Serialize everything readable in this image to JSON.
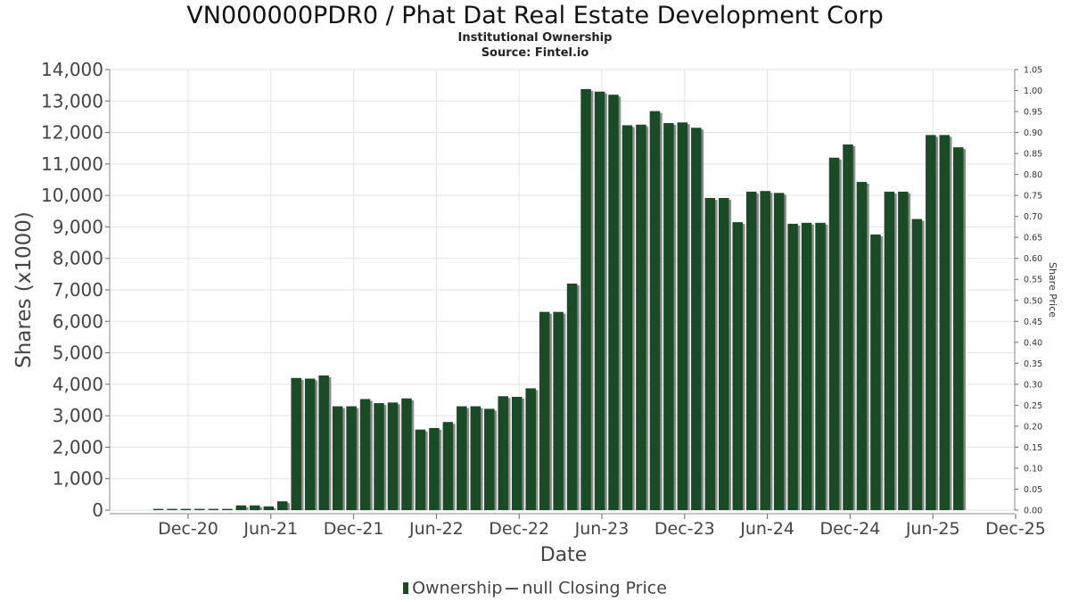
{
  "chart_data": {
    "type": "bar",
    "title": "VN000000PDR0 / Phat Dat Real Estate Development Corp",
    "subtitle_lines": [
      "Institutional Ownership",
      "Source: Fintel.io"
    ],
    "xlabel": "Date",
    "ylabel": "Shares (x1000)",
    "y2label": "Share Price",
    "ylim": [
      0,
      14000
    ],
    "y2lim": [
      0,
      1.05
    ],
    "yticks": [
      "0",
      "1,000",
      "2,000",
      "3,000",
      "4,000",
      "5,000",
      "6,000",
      "7,000",
      "8,000",
      "9,000",
      "10,000",
      "11,000",
      "12,000",
      "13,000",
      "14,000"
    ],
    "y2ticks": [
      "0.00",
      "0.05",
      "0.10",
      "0.15",
      "0.20",
      "0.25",
      "0.30",
      "0.35",
      "0.40",
      "0.45",
      "0.50",
      "0.55",
      "0.60",
      "0.65",
      "0.70",
      "0.75",
      "0.80",
      "0.85",
      "0.90",
      "0.95",
      "1.00",
      "1.05"
    ],
    "xticks": [
      "Dec-20",
      "Jun-21",
      "Dec-21",
      "Jun-22",
      "Dec-22",
      "Jun-23",
      "Dec-23",
      "Jun-24",
      "Dec-24",
      "Jun-25",
      "Dec-25"
    ],
    "grid": true,
    "legend_position": "bottom",
    "colors": {
      "bar": "#1b4a26",
      "bar_shadow": "#8a8a8a",
      "grid": "#e3e3e3"
    },
    "series": [
      {
        "name": "Ownership",
        "values": [
          40,
          40,
          40,
          40,
          40,
          40,
          150,
          150,
          120,
          280,
          4200,
          4180,
          4280,
          3300,
          3300,
          3530,
          3400,
          3420,
          3550,
          2560,
          2610,
          2800,
          3300,
          3300,
          3220,
          3620,
          3600,
          3870,
          6300,
          6300,
          7200,
          13380,
          13300,
          13200,
          12230,
          12250,
          12680,
          12300,
          12320,
          12150,
          9920,
          9920,
          9150,
          10120,
          10140,
          10080,
          9100,
          9130,
          9130,
          11200,
          11620,
          10430,
          8760,
          10120,
          10120,
          9250,
          11920,
          11920,
          11530
        ]
      }
    ],
    "legend": [
      "Ownership",
      "null Closing Price"
    ]
  }
}
